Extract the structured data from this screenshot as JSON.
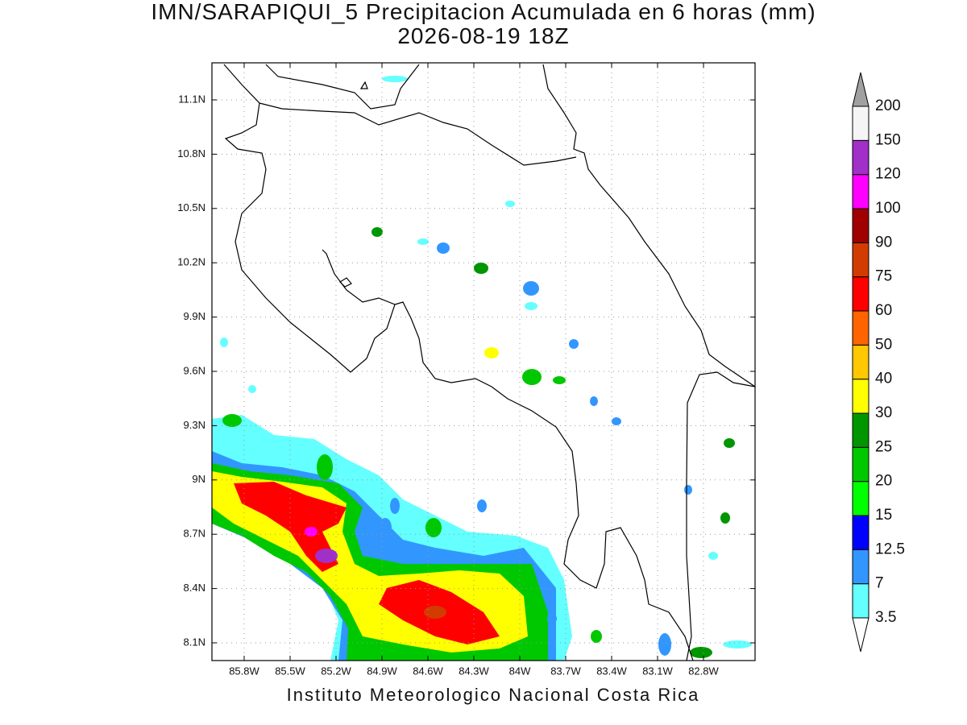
{
  "header": {
    "title": "IMN/SARAPIQUI_5 Precipitacion Acumulada en 6 horas (mm)",
    "subtitle": "2026-08-19 18Z"
  },
  "map": {
    "lat_labels": [
      "11.1N",
      "10.8N",
      "10.5N",
      "10.2N",
      "9.9N",
      "9.6N",
      "9.3N",
      "9N",
      "8.7N",
      "8.4N",
      "8.1N"
    ],
    "lon_labels": [
      "85.8W",
      "85.5W",
      "85.2W",
      "84.9W",
      "84.6W",
      "84.3W",
      "84W",
      "83.7W",
      "83.4W",
      "83.1W",
      "82.8W"
    ]
  },
  "legend": {
    "levels": [
      3.5,
      7,
      12.5,
      15,
      20,
      25,
      30,
      40,
      50,
      60,
      75,
      90,
      100,
      120,
      150,
      200
    ],
    "colors": [
      "#64ffff",
      "#3296ff",
      "#0000ff",
      "#00ff00",
      "#00c800",
      "#009600",
      "#ffff00",
      "#ffc800",
      "#ff6400",
      "#ff0000",
      "#d23c00",
      "#a00000",
      "#ff00ff",
      "#a030c8",
      "#f5f5f5"
    ],
    "above_color": "#a0a0a0",
    "below_color": "#ffffff"
  },
  "footer": "Instituto Meteorologico Nacional Costa Rica"
}
